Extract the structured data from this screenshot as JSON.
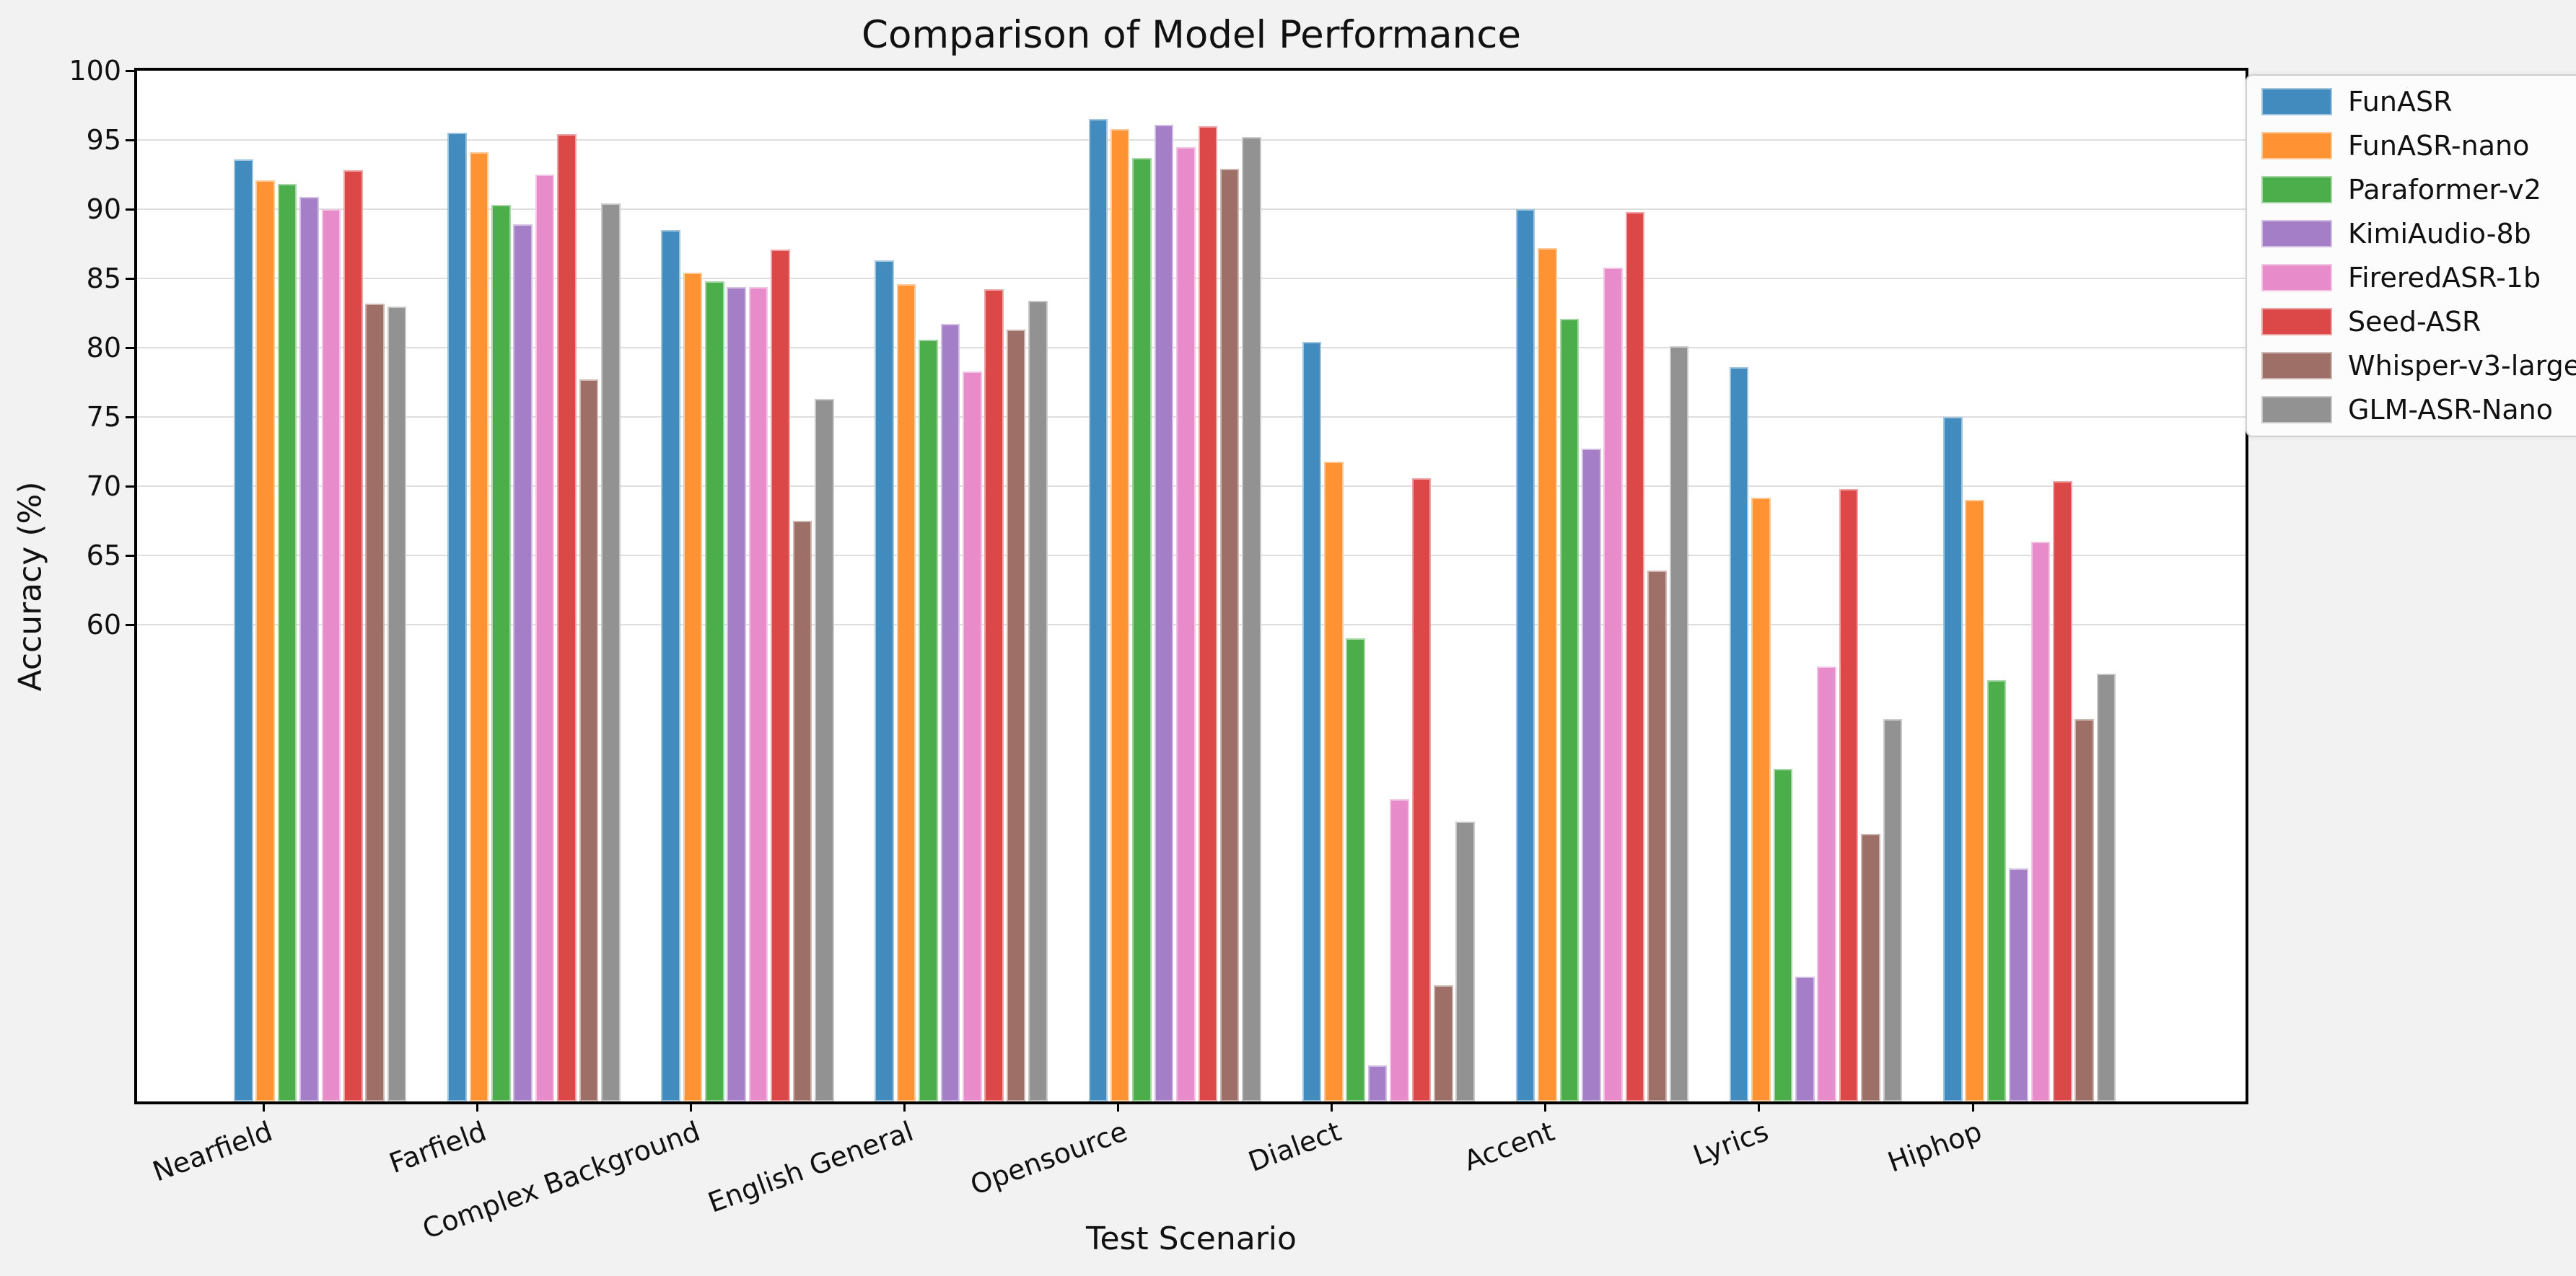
{
  "title": "Comparison of Model Performance",
  "chart_data": {
    "type": "bar",
    "title": "Comparison of Model Performance",
    "xlabel": "Test Scenario",
    "ylabel": "Accuracy (%)",
    "ylim": [
      25.6,
      100
    ],
    "yticks": [
      100,
      95,
      90,
      85,
      80,
      75,
      70,
      65,
      60
    ],
    "grid": true,
    "legend_position": "outside-upper-right",
    "plot_background": "#ffffff",
    "figure_background": "#f2f2f2",
    "categories": [
      "Nearfield",
      "Farfield",
      "Complex Background",
      "English General",
      "Opensource",
      "Dialect",
      "Accent",
      "Lyrics",
      "Hiphop"
    ],
    "series": [
      {
        "name": "FunASR",
        "color": "#418bbf",
        "values": [
          93.6,
          95.5,
          88.5,
          86.3,
          96.5,
          80.4,
          90.0,
          78.6,
          75.0
        ]
      },
      {
        "name": "FunASR-nano",
        "color": "#ff9232",
        "values": [
          92.1,
          94.1,
          85.4,
          84.6,
          95.8,
          71.8,
          87.2,
          69.2,
          69.0
        ]
      },
      {
        "name": "Paraformer-v2",
        "color": "#4bae4b",
        "values": [
          91.8,
          90.3,
          84.8,
          80.6,
          93.7,
          59.0,
          82.1,
          49.6,
          56.0
        ]
      },
      {
        "name": "KimiAudio-8b",
        "color": "#a47ec7",
        "values": [
          90.9,
          88.9,
          84.4,
          81.7,
          96.1,
          28.2,
          72.7,
          34.6,
          42.4
        ]
      },
      {
        "name": "FireredASR-1b",
        "color": "#e78bcb",
        "values": [
          90.0,
          92.5,
          84.4,
          78.3,
          94.5,
          47.4,
          85.8,
          57.0,
          66.0
        ]
      },
      {
        "name": "Seed-ASR",
        "color": "#dc4748",
        "values": [
          92.8,
          95.4,
          87.1,
          84.2,
          96.0,
          70.6,
          89.8,
          69.8,
          70.4
        ]
      },
      {
        "name": "Whisper-v3-large",
        "color": "#9d6f66",
        "values": [
          83.2,
          77.7,
          67.5,
          81.3,
          92.9,
          34.0,
          63.9,
          44.9,
          53.2
        ]
      },
      {
        "name": "GLM-ASR-Nano",
        "color": "#929292",
        "values": [
          83.0,
          90.4,
          76.3,
          83.4,
          95.2,
          45.8,
          80.1,
          53.2,
          56.5
        ]
      }
    ]
  }
}
